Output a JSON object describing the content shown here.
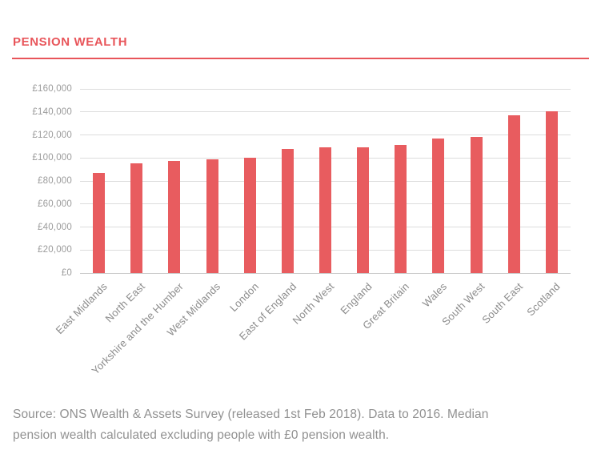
{
  "header": {
    "title": "PENSION WEALTH"
  },
  "chart_data": {
    "type": "bar",
    "title": "PENSION WEALTH",
    "categories": [
      "East Midlands",
      "North East",
      "Yorkshire and the Humber",
      "West Midlands",
      "London",
      "East of England",
      "North West",
      "England",
      "Great Britain",
      "Wales",
      "South West",
      "South East",
      "Scotland"
    ],
    "values": [
      87000,
      95000,
      97500,
      98500,
      100500,
      108000,
      109000,
      109500,
      111500,
      117000,
      118500,
      137000,
      140500
    ],
    "ylim": [
      0,
      160000
    ],
    "ytick_interval": 20000,
    "ytick_labels": [
      "£0",
      "£20,000",
      "£40,000",
      "£60,000",
      "£80,000",
      "£100,000",
      "£120,000",
      "£140,000",
      "£160,000"
    ],
    "xlabel": "",
    "ylabel": "",
    "grid": true,
    "legend": "none",
    "bar_color": "#e85c5f",
    "gridline_color": "#dcdcdc",
    "accent_color": "#e8555a"
  },
  "footer": {
    "lines": [
      "Source: ONS Wealth & Assets Survey (released 1st Feb 2018). Data to 2016. Median",
      "pension wealth calculated excluding people with £0 pension wealth."
    ]
  }
}
